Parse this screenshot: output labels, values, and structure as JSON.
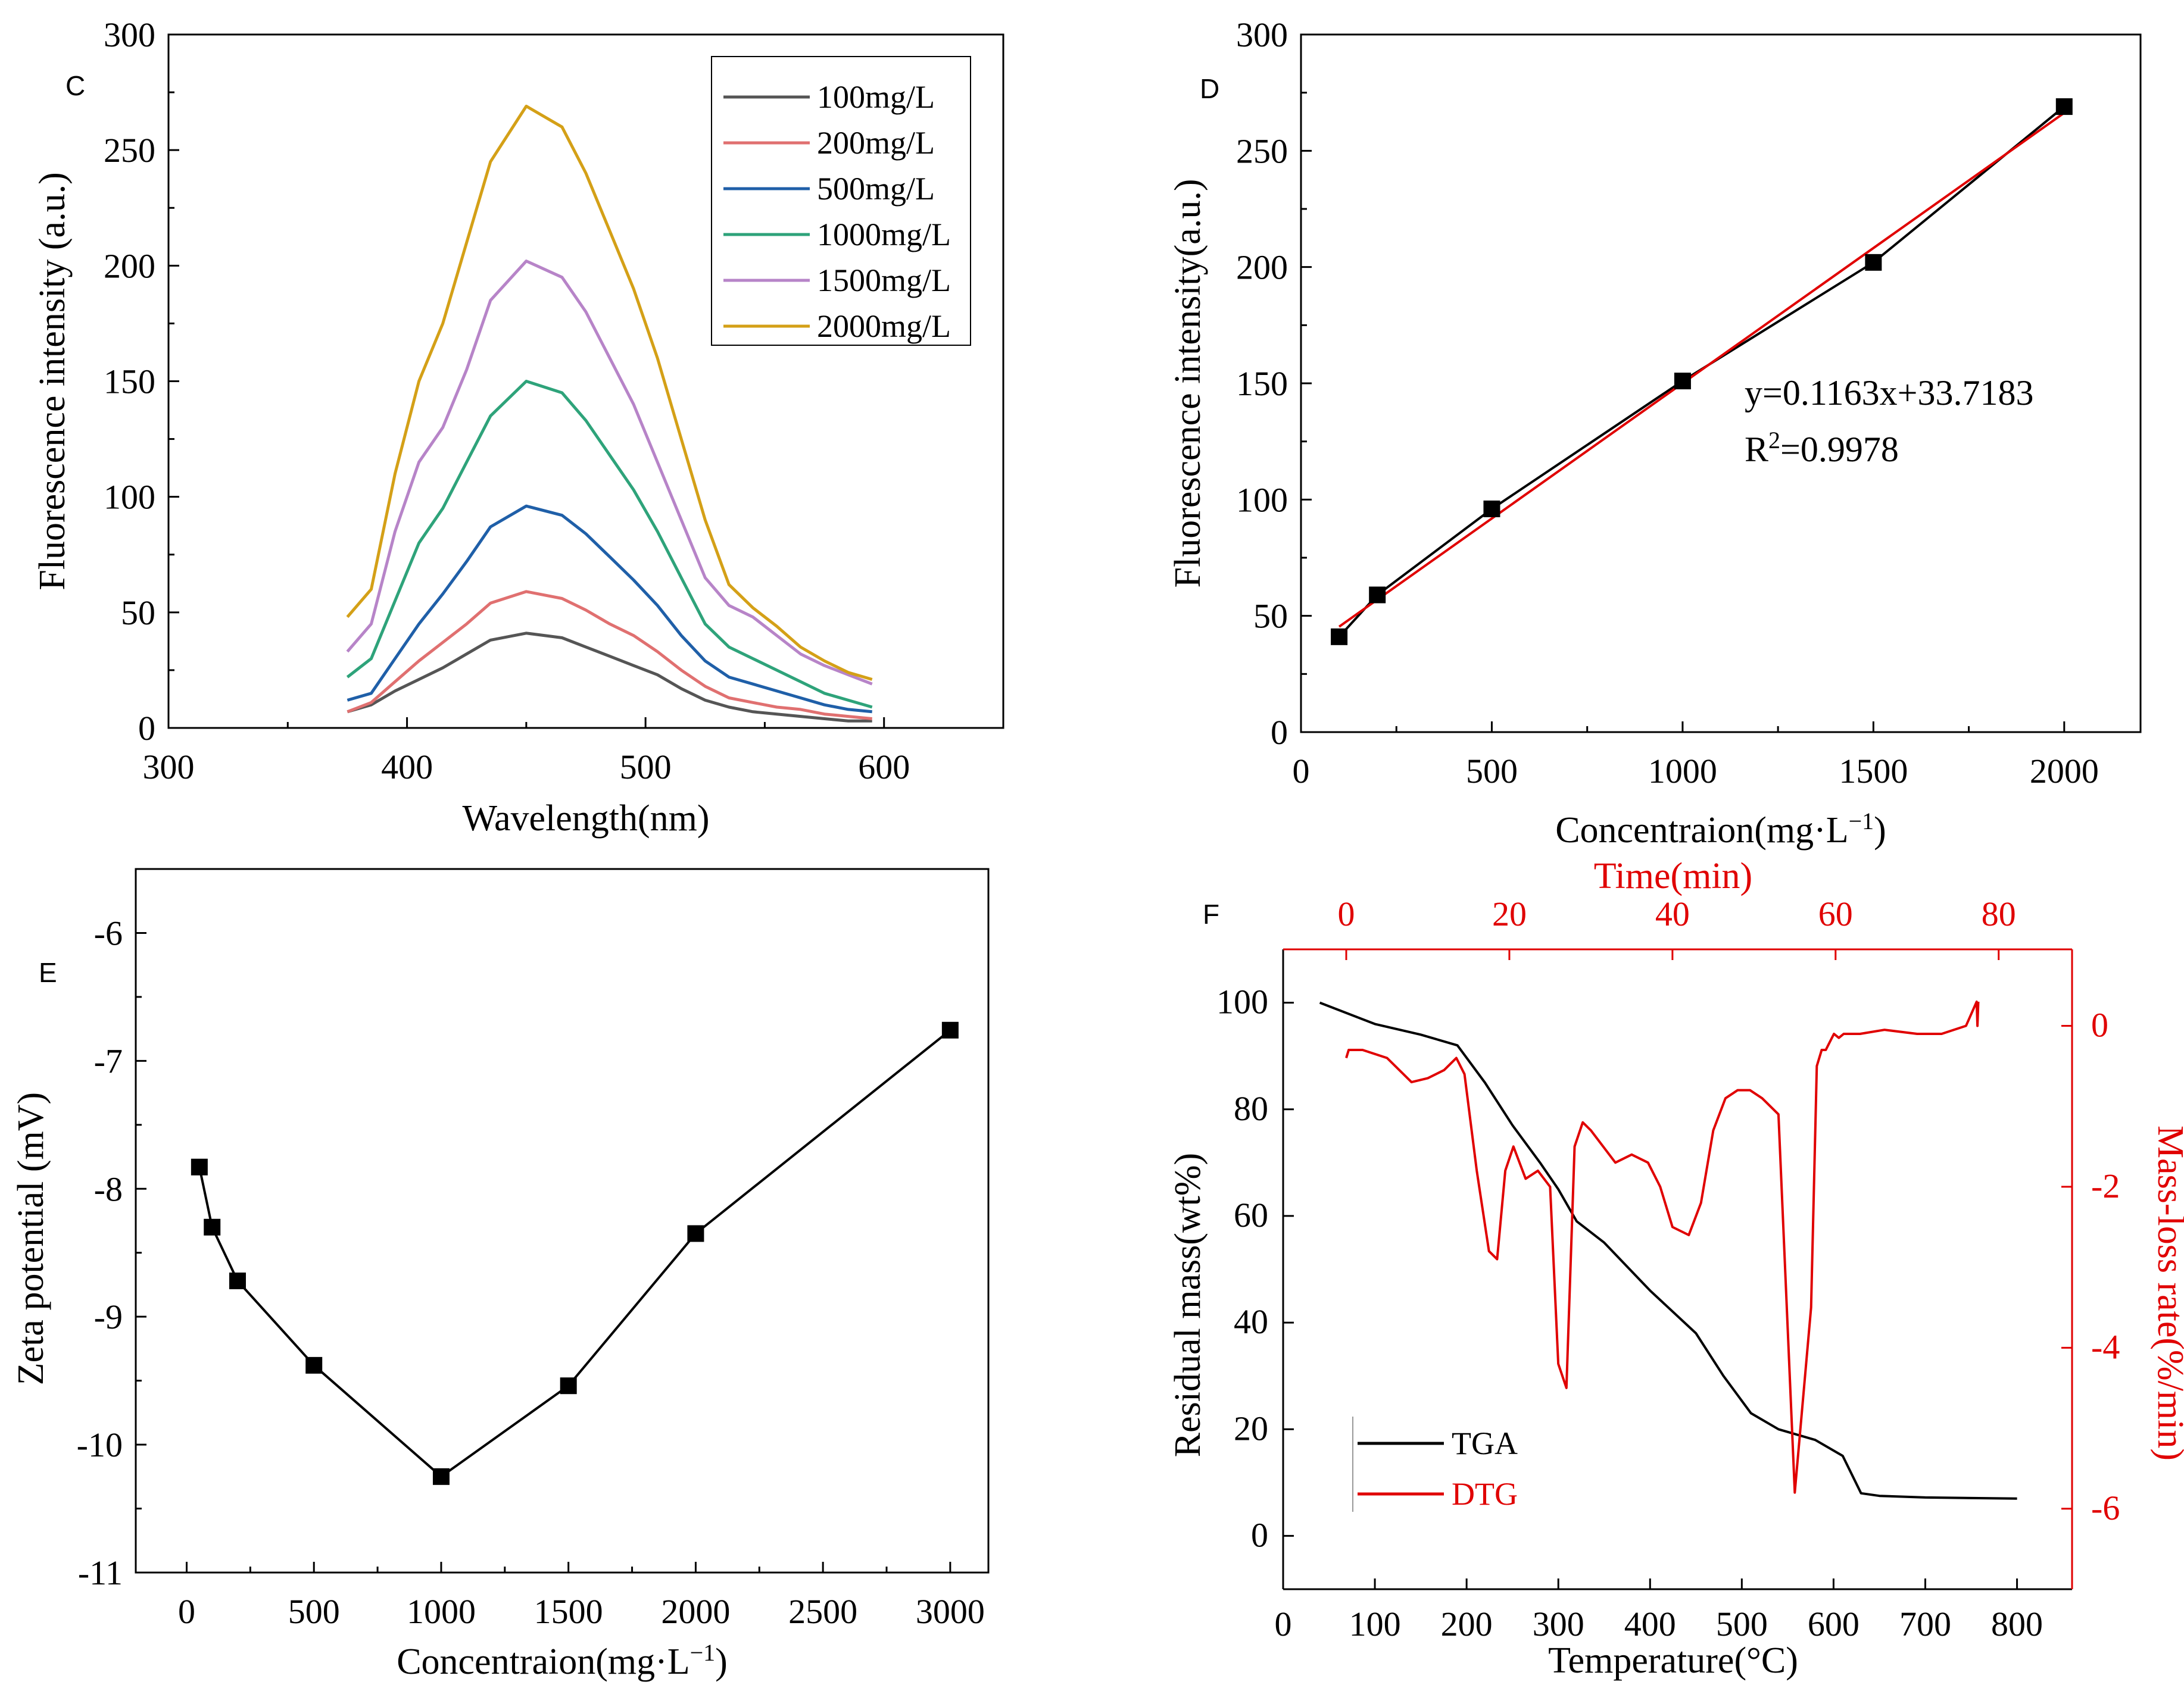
{
  "chart_data": [
    {
      "panel": "C",
      "type": "line",
      "xlabel": "Wavelength(nm)",
      "ylabel": "Fluorescence intensity (a.u.)",
      "xlim": [
        300,
        650
      ],
      "ylim": [
        0,
        300
      ],
      "xticks": [
        300,
        400,
        500,
        600
      ],
      "yticks": [
        0,
        50,
        100,
        150,
        200,
        250,
        300
      ],
      "x": [
        375,
        385,
        395,
        405,
        415,
        425,
        435,
        450,
        465,
        475,
        485,
        495,
        505,
        515,
        525,
        535,
        545,
        555,
        565,
        575,
        585,
        595
      ],
      "series": [
        {
          "name": "100mg/L",
          "color": "#555555",
          "peak": 41,
          "values": [
            7,
            10,
            16,
            21,
            26,
            32,
            38,
            41,
            39,
            35,
            31,
            27,
            23,
            17,
            12,
            9,
            7,
            6,
            5,
            4,
            3,
            3
          ]
        },
        {
          "name": "200mg/L",
          "color": "#e07070",
          "peak": 59,
          "values": [
            7,
            11,
            20,
            29,
            37,
            45,
            54,
            59,
            56,
            51,
            45,
            40,
            33,
            25,
            18,
            13,
            11,
            9,
            8,
            6,
            5,
            4
          ]
        },
        {
          "name": "500mg/L",
          "color": "#1f5fa8",
          "peak": 96,
          "values": [
            12,
            15,
            30,
            45,
            58,
            72,
            87,
            96,
            92,
            84,
            74,
            64,
            53,
            40,
            29,
            22,
            19,
            16,
            13,
            10,
            8,
            7
          ]
        },
        {
          "name": "1000mg/L",
          "color": "#2ea37a",
          "peak": 150,
          "values": [
            22,
            30,
            55,
            80,
            95,
            115,
            135,
            150,
            145,
            133,
            118,
            103,
            85,
            65,
            45,
            35,
            30,
            25,
            20,
            15,
            12,
            9
          ]
        },
        {
          "name": "1500mg/L",
          "color": "#b784c8",
          "peak": 202,
          "values": [
            33,
            45,
            85,
            115,
            130,
            155,
            185,
            202,
            195,
            180,
            160,
            140,
            115,
            90,
            65,
            53,
            48,
            40,
            32,
            27,
            23,
            19
          ]
        },
        {
          "name": "2000mg/L",
          "color": "#d4a017",
          "peak": 269,
          "values": [
            48,
            60,
            110,
            150,
            175,
            210,
            245,
            269,
            260,
            240,
            215,
            190,
            160,
            125,
            90,
            62,
            52,
            44,
            35,
            29,
            24,
            21
          ]
        }
      ]
    },
    {
      "panel": "D",
      "type": "scatter",
      "xlabel": "Concentraion(mg·L",
      "xlabel_sup": "−1",
      "xlabel_tail": ")",
      "ylabel": "Fluorescence intensity(a.u.)",
      "xlim": [
        0,
        2200
      ],
      "ylim": [
        0,
        300
      ],
      "xticks": [
        0,
        500,
        1000,
        1500,
        2000
      ],
      "yticks": [
        0,
        50,
        100,
        150,
        200,
        250,
        300
      ],
      "x": [
        100,
        200,
        500,
        1000,
        1500,
        2000
      ],
      "values": [
        41,
        59,
        96,
        151,
        202,
        269
      ],
      "fit": {
        "slope": 0.1163,
        "intercept": 33.7183,
        "color": "#e00000",
        "equation": "y=0.1163x+33.7183",
        "r2_label": "R",
        "r2_sup": "2",
        "r2_value": "=0.9978"
      }
    },
    {
      "panel": "E",
      "type": "line",
      "xlabel": "Concentraion(mg·L",
      "xlabel_sup": "−1",
      "xlabel_tail": ")",
      "ylabel": "Zeta potential (mV)",
      "xlim": [
        -200,
        3150
      ],
      "ylim": [
        -11,
        -5.5
      ],
      "xticks": [
        0,
        500,
        1000,
        1500,
        2000,
        2500,
        3000
      ],
      "yticks": [
        -11,
        -10,
        -9,
        -8,
        -7,
        -6
      ],
      "ytick_labels": [
        "-11",
        "-10",
        "-9",
        "-8",
        "-7",
        "-6"
      ],
      "x": [
        50,
        100,
        200,
        500,
        1000,
        1500,
        2000,
        3000
      ],
      "values": [
        -7.83,
        -8.3,
        -8.72,
        -9.38,
        -10.25,
        -9.54,
        -8.35,
        -6.76
      ]
    },
    {
      "panel": "F",
      "type": "line",
      "xlabel": "Temperature(°C)",
      "x2label": "Time(min)",
      "ylabel": "Residual mass(wt%)",
      "y2label": "Mass-loss rate(%/min)",
      "xlim": [
        0,
        860
      ],
      "ylim": [
        -10,
        110
      ],
      "x2lim": [
        -7.74,
        89
      ],
      "y2lim": [
        -7,
        0.95
      ],
      "xticks": [
        0,
        100,
        200,
        300,
        400,
        500,
        600,
        700,
        800
      ],
      "yticks": [
        0,
        20,
        40,
        60,
        80,
        100
      ],
      "x2ticks": [
        0,
        20,
        40,
        60,
        80
      ],
      "y2ticks": [
        -6,
        -4,
        -2,
        0
      ],
      "legend": [
        {
          "name": "TGA",
          "color": "#000000"
        },
        {
          "name": "DTG",
          "color": "#e00000"
        }
      ],
      "tga": {
        "x": [
          40,
          100,
          150,
          190,
          220,
          250,
          280,
          300,
          320,
          350,
          400,
          450,
          480,
          510,
          540,
          580,
          610,
          630,
          650,
          700,
          800
        ],
        "values": [
          100,
          96,
          94,
          92,
          85,
          77,
          70,
          65,
          59,
          55,
          46,
          38,
          30,
          23,
          20,
          18,
          15,
          8,
          7.5,
          7.2,
          7
        ]
      },
      "dtg": {
        "x": [
          0,
          0.3,
          2,
          5,
          8,
          10,
          12,
          13.5,
          14.5,
          16,
          17.5,
          18.5,
          19.5,
          20.5,
          22,
          23.5,
          25,
          26,
          27,
          28,
          29,
          30,
          31.5,
          33,
          35,
          37,
          38.5,
          40,
          42,
          43.5,
          45,
          46.5,
          48,
          49.5,
          51,
          53,
          55,
          57,
          57.7,
          58.3,
          58.8,
          59.3,
          59.8,
          60.4,
          61,
          63,
          66,
          70,
          73,
          76,
          77.3,
          77.4,
          77.5
        ],
        "values": [
          -0.4,
          -0.3,
          -0.3,
          -0.4,
          -0.7,
          -0.65,
          -0.55,
          -0.4,
          -0.6,
          -1.8,
          -2.8,
          -2.9,
          -1.8,
          -1.5,
          -1.9,
          -1.8,
          -2,
          -4.2,
          -4.5,
          -1.5,
          -1.2,
          -1.3,
          -1.5,
          -1.7,
          -1.6,
          -1.7,
          -2,
          -2.5,
          -2.6,
          -2.2,
          -1.3,
          -0.9,
          -0.8,
          -0.8,
          -0.9,
          -1.1,
          -5.8,
          -3.5,
          -0.5,
          -0.3,
          -0.3,
          -0.2,
          -0.1,
          -0.15,
          -0.1,
          -0.1,
          -0.05,
          -0.1,
          -0.1,
          0,
          0.3,
          0,
          0.3
        ]
      }
    }
  ]
}
